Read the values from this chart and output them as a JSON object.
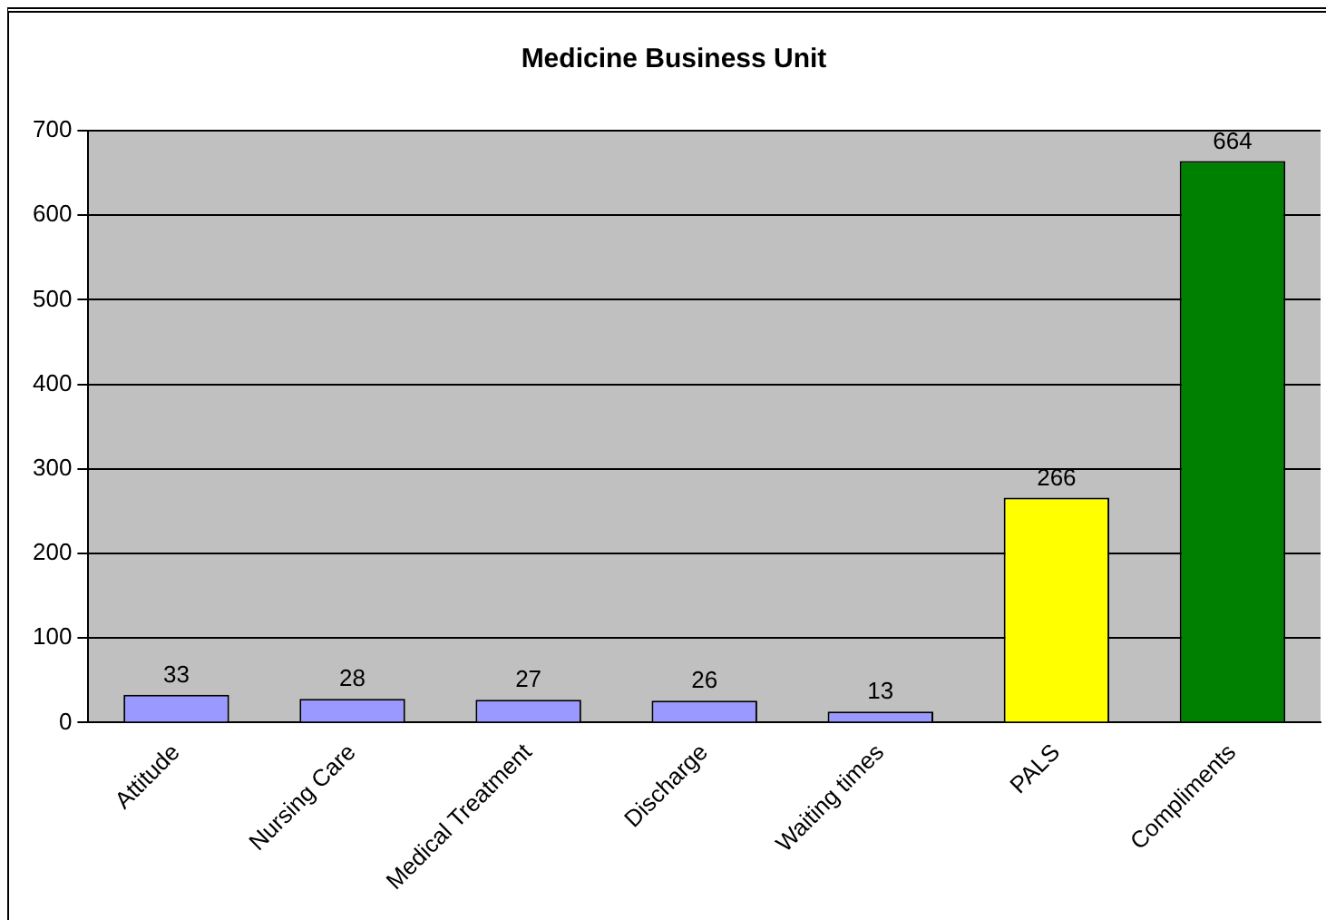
{
  "chart_data": {
    "type": "bar",
    "title": "Medicine Business Unit",
    "categories": [
      "Attitude",
      "Nursing Care",
      "Medical Treatment",
      "Discharge",
      "Waiting times",
      "PALS",
      "Compliments"
    ],
    "values": [
      33,
      28,
      27,
      26,
      13,
      266,
      664
    ],
    "colors": [
      "#9999ff",
      "#9999ff",
      "#9999ff",
      "#9999ff",
      "#9999ff",
      "#ffff00",
      "#008000"
    ],
    "ylim": [
      0,
      700
    ],
    "yticks": [
      0,
      100,
      200,
      300,
      400,
      500,
      600,
      700
    ],
    "grid": "y",
    "legend": false,
    "data_labels": true
  }
}
